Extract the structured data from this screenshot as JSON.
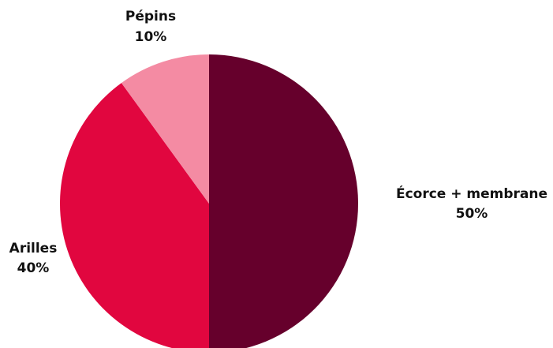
{
  "chart_data": {
    "type": "pie",
    "title": "",
    "slices": [
      {
        "label": "Écorce + membrane",
        "value": 50,
        "value_label": "50%",
        "color": "#66002C"
      },
      {
        "label": "Arilles",
        "value": 40,
        "value_label": "40%",
        "color": "#E1063F"
      },
      {
        "label": "Pépins",
        "value": 10,
        "value_label": "10%",
        "color": "#F48BA3"
      }
    ],
    "start_angle": "top",
    "direction": "clockwise",
    "legend": "none"
  }
}
